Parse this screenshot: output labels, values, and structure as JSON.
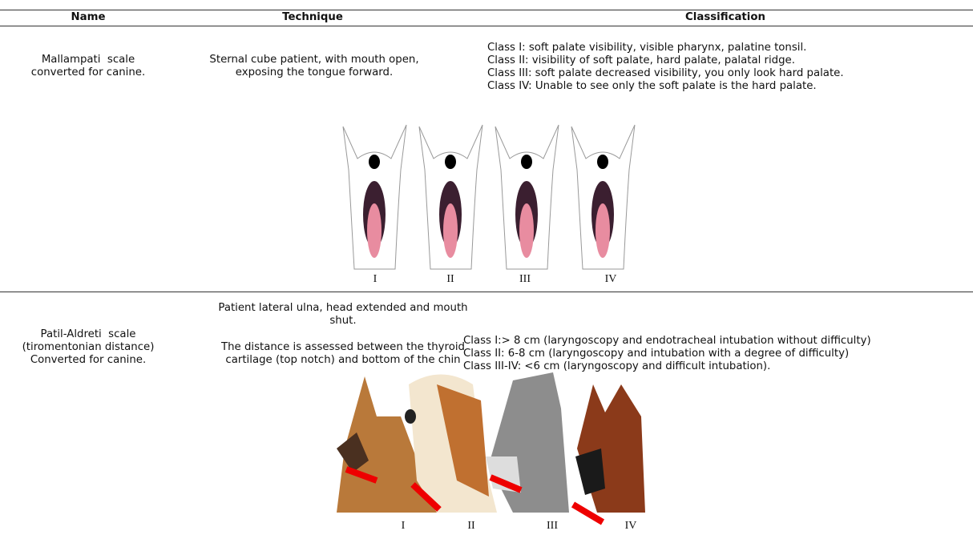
{
  "table": {
    "headers": [
      "Name",
      "Technique",
      "Classification"
    ],
    "rows": [
      {
        "name": [
          "Mallampati  scale",
          "converted for canine."
        ],
        "technique": [
          [
            "Sternal cube patient, with mouth open,",
            "exposing the tongue forward."
          ]
        ],
        "classification": [
          "Class I: soft palate visibility, visible pharynx, palatine tonsil.",
          "Class II: visibility of soft palate, hard palate, palatal ridge.",
          "Class III: soft palate decreased visibility, you only look hard palate.",
          "Class IV: Unable to see only the soft palate is the hard palate."
        ],
        "figure_labels": [
          "I",
          "II",
          "III",
          "IV"
        ]
      },
      {
        "name": [
          "Patil-Aldreti  scale",
          "(tiromentonian distance)",
          "Converted for canine."
        ],
        "technique": [
          [
            "Patient lateral ulna, head extended and mouth",
            "shut."
          ],
          [
            "The distance is assessed between the thyroid",
            "cartilage (top notch) and bottom of the chin"
          ]
        ],
        "classification": [
          "Class I:> 8 cm (laryngoscopy and endotracheal intubation without difficulty)",
          "Class II: 6-8 cm (laryngoscopy and intubation with a degree of difficulty)",
          "Class III-IV: <6 cm (laryngoscopy and difficult intubation)."
        ],
        "figure_labels": [
          "I",
          "II",
          "III",
          "IV"
        ]
      }
    ]
  }
}
